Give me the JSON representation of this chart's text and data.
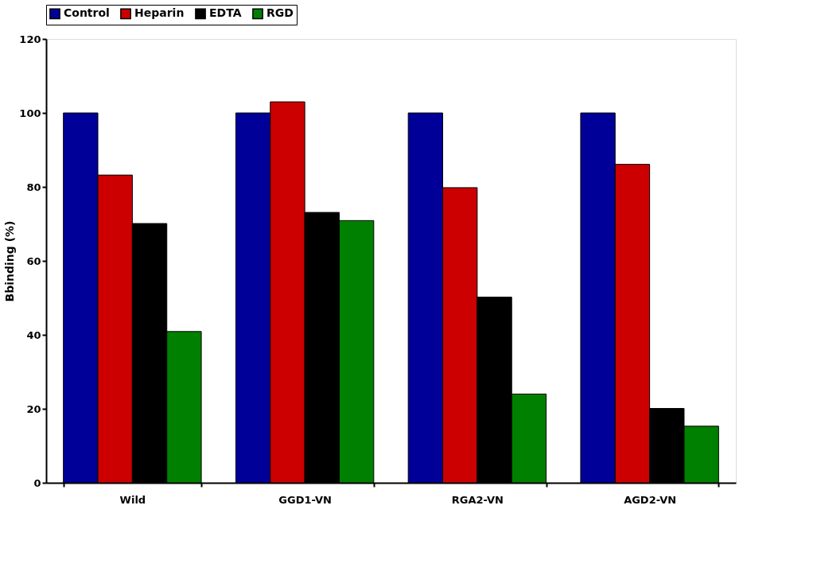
{
  "chart_data": {
    "type": "bar",
    "ylabel": "Bbinding (%)",
    "categories": [
      "Wild",
      "GGD1-VN",
      "RGA2-VN",
      "AGD2-VN"
    ],
    "series": [
      {
        "name": "Control",
        "color": "#000099",
        "values": [
          100,
          100,
          100,
          100
        ]
      },
      {
        "name": "Heparin",
        "color": "#cc0000",
        "values": [
          83.2,
          103,
          79.8,
          86.1
        ]
      },
      {
        "name": "EDTA",
        "color": "#000000",
        "values": [
          70.1,
          73.1,
          50.2,
          20.1
        ]
      },
      {
        "name": "RGD",
        "color": "#008000",
        "values": [
          40.9,
          70.9,
          24,
          15.3
        ]
      }
    ],
    "ylim": [
      0,
      120
    ],
    "yticks": [
      0,
      20,
      40,
      60,
      80,
      100,
      120
    ],
    "grid": false,
    "legend": "top"
  }
}
